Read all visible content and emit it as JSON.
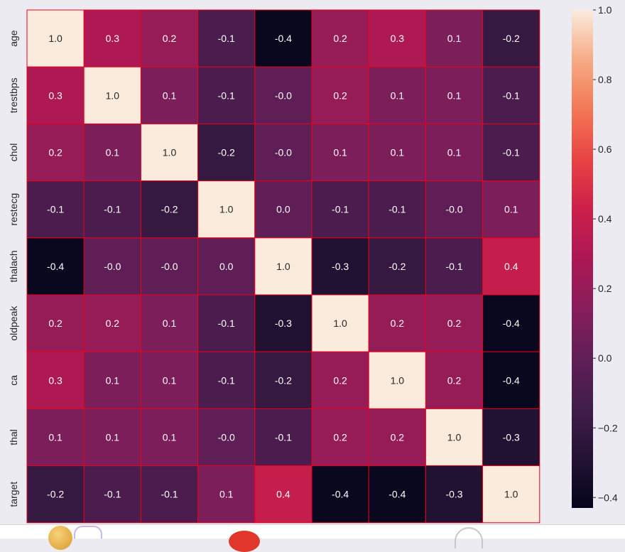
{
  "chart_data": {
    "type": "heatmap",
    "title": "",
    "xlabel": "",
    "ylabel": "",
    "x_labels": [
      "age",
      "trestbps",
      "chol",
      "restecg",
      "thalach",
      "oldpeak",
      "ca",
      "thal",
      "target"
    ],
    "y_labels": [
      "age",
      "trestbps",
      "chol",
      "restecg",
      "thalach",
      "oldpeak",
      "ca",
      "thal",
      "target"
    ],
    "annot_format": "{:.1f}",
    "values": [
      [
        1.0,
        0.3,
        0.2,
        -0.1,
        -0.4,
        0.2,
        0.3,
        0.1,
        -0.2
      ],
      [
        0.3,
        1.0,
        0.1,
        -0.1,
        -0.0,
        0.2,
        0.1,
        0.1,
        -0.1
      ],
      [
        0.2,
        0.1,
        1.0,
        -0.2,
        -0.0,
        0.1,
        0.1,
        0.1,
        -0.1
      ],
      [
        -0.1,
        -0.1,
        -0.2,
        1.0,
        0.0,
        -0.1,
        -0.1,
        -0.0,
        0.1
      ],
      [
        -0.4,
        -0.0,
        -0.0,
        0.0,
        1.0,
        -0.3,
        -0.2,
        -0.1,
        0.4
      ],
      [
        0.2,
        0.2,
        0.1,
        -0.1,
        -0.3,
        1.0,
        0.2,
        0.2,
        -0.4
      ],
      [
        0.3,
        0.1,
        0.1,
        -0.1,
        -0.2,
        0.2,
        1.0,
        0.2,
        -0.4
      ],
      [
        0.1,
        0.1,
        0.1,
        -0.0,
        -0.1,
        0.2,
        0.2,
        1.0,
        -0.3
      ],
      [
        -0.2,
        -0.1,
        -0.1,
        0.1,
        0.4,
        -0.4,
        -0.4,
        -0.3,
        1.0
      ]
    ],
    "value_range": [
      -0.43,
      1.0
    ],
    "colormap": "rocket",
    "cell_border_color": "#e8001c",
    "colorbar": {
      "position": "right",
      "ticks": [
        1.0,
        0.8,
        0.6,
        0.4,
        0.2,
        0.0,
        -0.2,
        -0.4
      ],
      "tick_labels": [
        "1.0",
        "0.8",
        "0.6",
        "0.4",
        "0.2",
        "0.0",
        "−0.2",
        "−0.4"
      ]
    },
    "grid": false
  }
}
